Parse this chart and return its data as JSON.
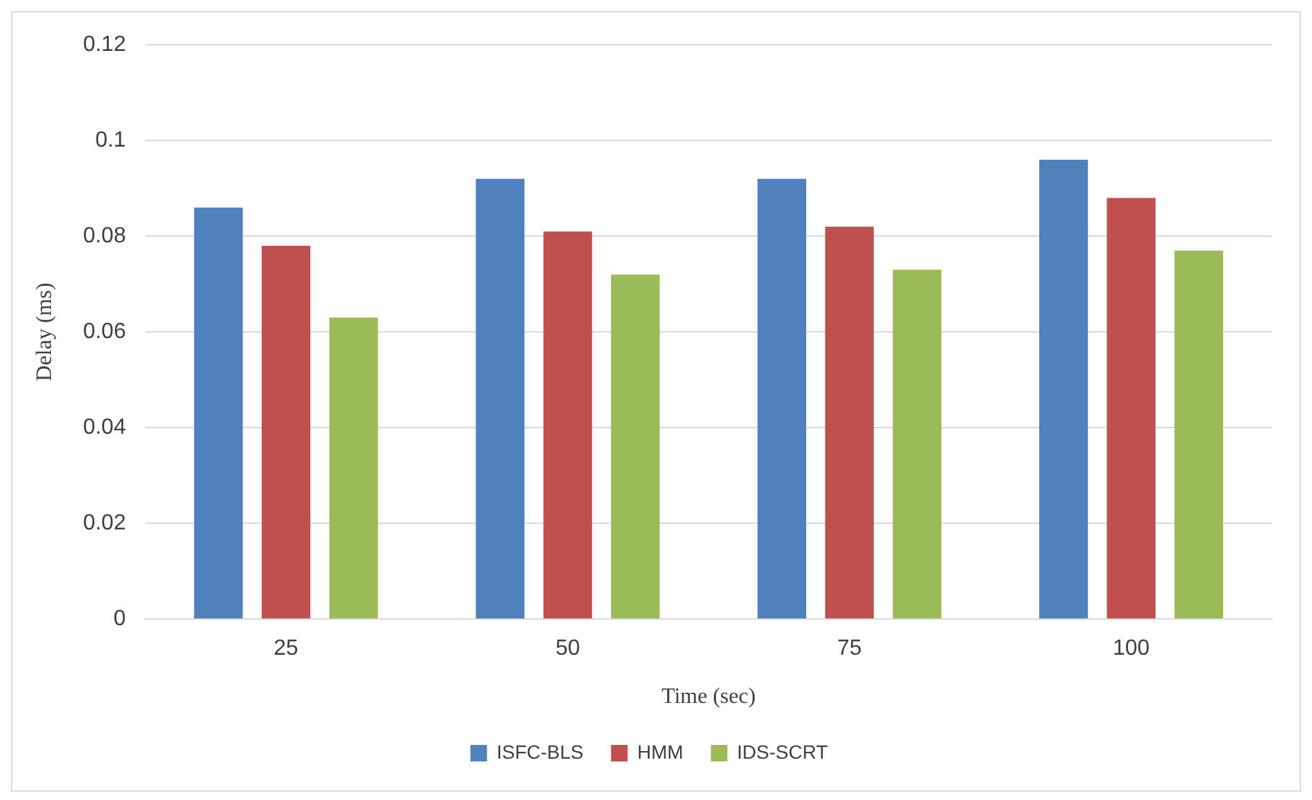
{
  "chart_data": {
    "type": "bar",
    "xlabel": "Time (sec)",
    "ylabel": "Delay (ms)",
    "categories": [
      "25",
      "50",
      "75",
      "100"
    ],
    "series": [
      {
        "name": "ISFC-BLS",
        "color": "#4f81bd",
        "values": [
          0.086,
          0.092,
          0.092,
          0.096
        ]
      },
      {
        "name": "HMM",
        "color": "#c0504d",
        "values": [
          0.078,
          0.081,
          0.082,
          0.088
        ]
      },
      {
        "name": "IDS-SCRT",
        "color": "#9bbb59",
        "values": [
          0.063,
          0.072,
          0.073,
          0.077
        ]
      }
    ],
    "ylim": [
      0,
      0.12
    ],
    "yticks": [
      0,
      0.02,
      0.04,
      0.06,
      0.08,
      0.1,
      0.12
    ],
    "grid": "y",
    "legend": "bottom"
  }
}
